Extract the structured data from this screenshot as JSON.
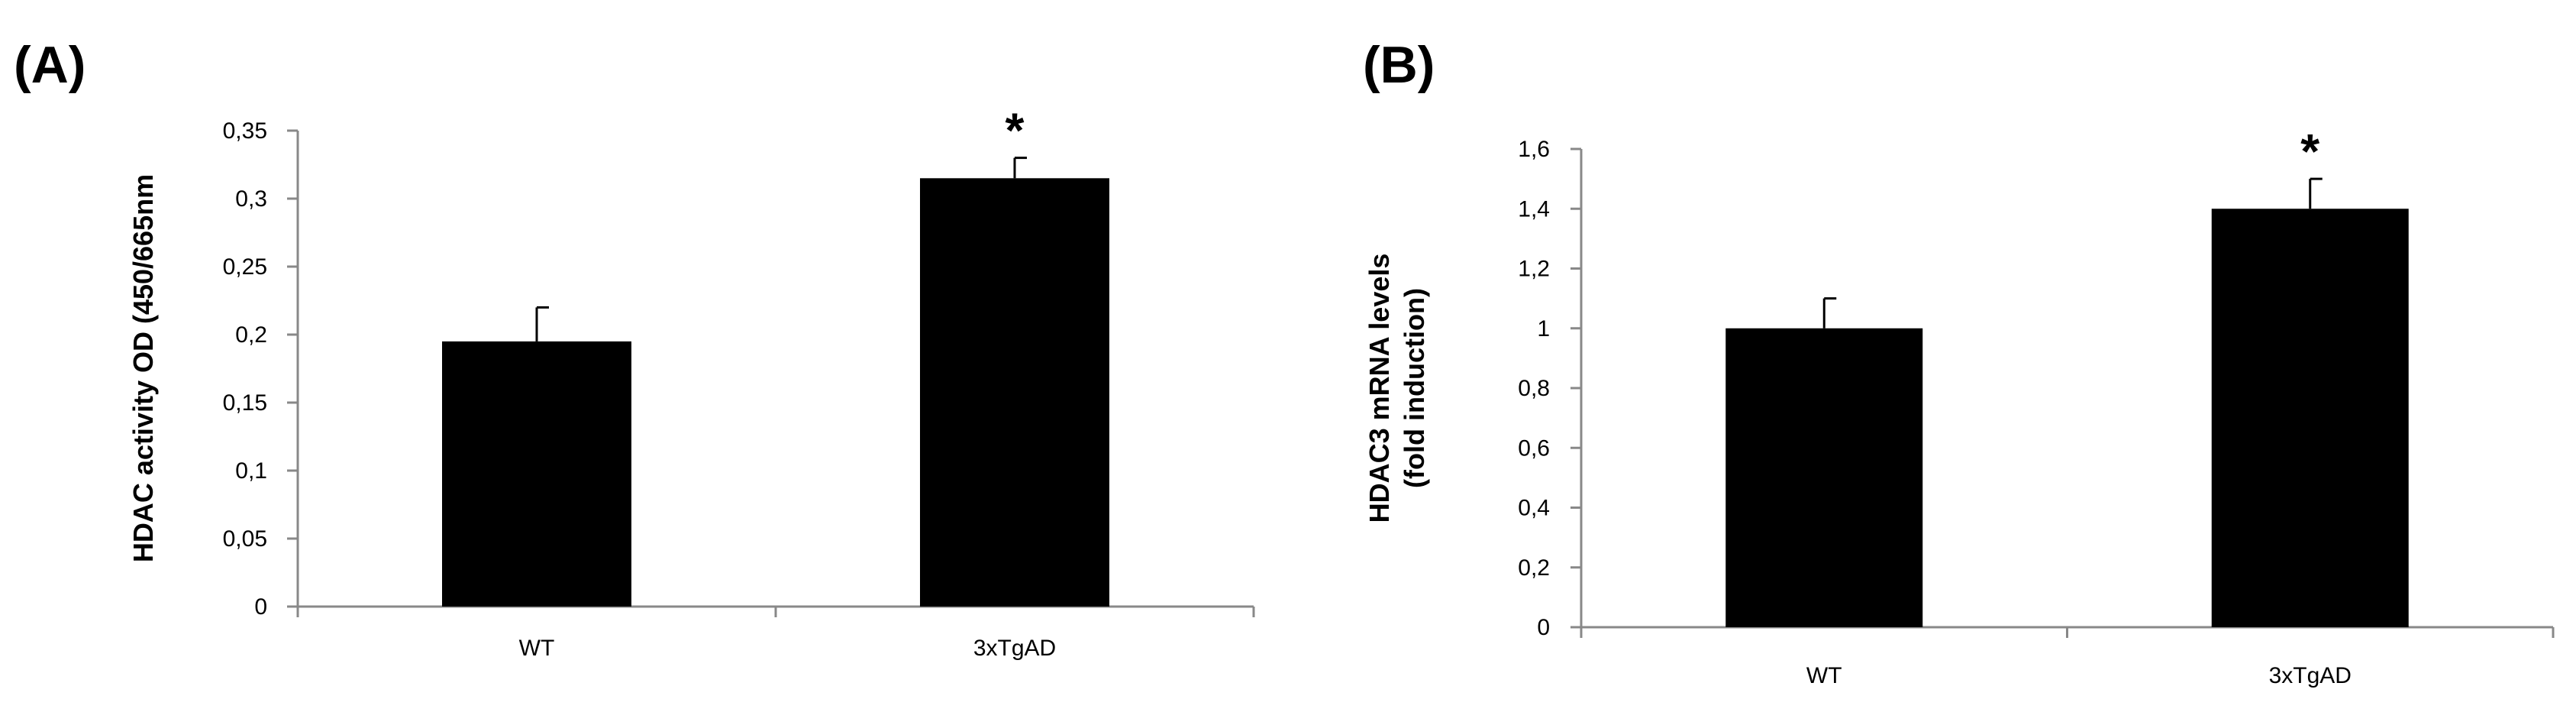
{
  "chart_data": [
    {
      "type": "bar",
      "panel_label": "(A)",
      "categories": [
        "WT",
        "3xTgAD"
      ],
      "values": [
        0.195,
        0.315
      ],
      "errors": [
        0.025,
        0.015
      ],
      "significance": [
        "",
        "*"
      ],
      "ylabel_lines": [
        "HDAC activity OD (450/665nm"
      ],
      "ylim": [
        0,
        0.35
      ],
      "yticks": [
        0,
        0.05,
        0.1,
        0.15,
        0.2,
        0.25,
        0.3,
        0.35
      ],
      "ytick_labels": [
        "0",
        "0,05",
        "0,1",
        "0,15",
        "0,2",
        "0,25",
        "0,3",
        "0,35"
      ],
      "grid": false,
      "bar_color": "#000000"
    },
    {
      "type": "bar",
      "panel_label": "(B)",
      "categories": [
        "WT",
        "3xTgAD"
      ],
      "values": [
        1.0,
        1.4
      ],
      "errors": [
        0.1,
        0.1
      ],
      "significance": [
        "",
        "*"
      ],
      "ylabel_lines": [
        "HDAC3 mRNA levels",
        "(fold induction)"
      ],
      "ylim": [
        0,
        1.6
      ],
      "yticks": [
        0,
        0.2,
        0.4,
        0.6,
        0.8,
        1,
        1.2,
        1.4,
        1.6
      ],
      "ytick_labels": [
        "0",
        "0,2",
        "0,4",
        "0,6",
        "0,8",
        "1",
        "1,2",
        "1,4",
        "1,6"
      ],
      "grid": false,
      "bar_color": "#000000"
    }
  ]
}
